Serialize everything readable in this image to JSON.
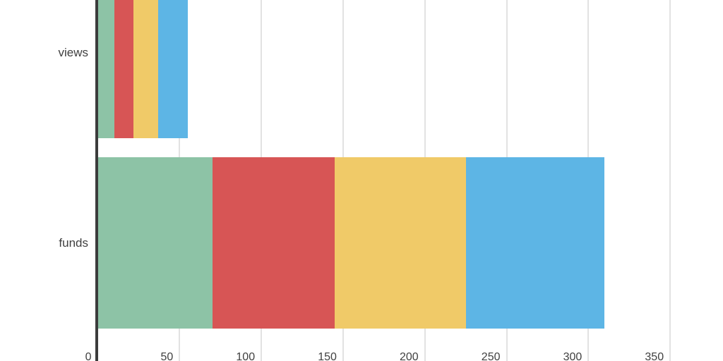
{
  "chart_data": {
    "type": "bar",
    "orientation": "horizontal",
    "stacked": true,
    "categories": [
      "views",
      "funds"
    ],
    "series": [
      {
        "color": "#8DC3A6",
        "values": [
          10,
          70
        ]
      },
      {
        "color": "#D75555",
        "values": [
          12,
          75
        ]
      },
      {
        "color": "#F0CA68",
        "values": [
          15,
          80
        ]
      },
      {
        "color": "#5DB5E5",
        "values": [
          18,
          85
        ]
      }
    ],
    "x_ticks": [
      0,
      50,
      100,
      150,
      200,
      250,
      300,
      350
    ],
    "x_tick_labels": [
      "0",
      "50",
      "100",
      "150",
      "200",
      "250",
      "300",
      "350"
    ],
    "xlim": [
      0,
      382
    ],
    "grid": "vertical-only",
    "legend": "none",
    "title": "",
    "notes": "top of first bar and bottom of tick labels are clipped by the viewport"
  },
  "colors": {
    "background": "#FFFFFF",
    "axis_line": "#3C3C3C",
    "gridline": "#E2E2E2",
    "label_text": "#3F3F3F"
  }
}
